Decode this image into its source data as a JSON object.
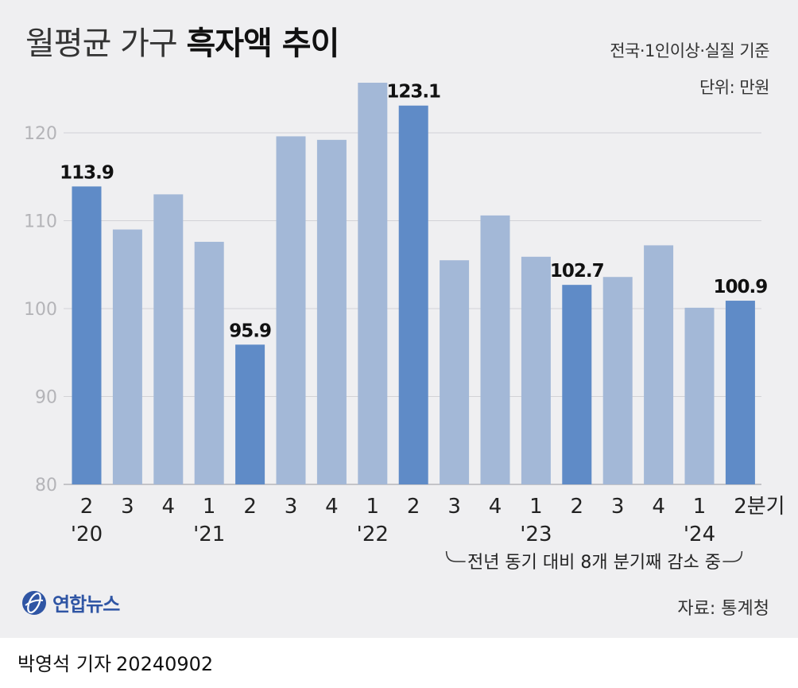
{
  "header": {
    "title_light": "월평균 가구",
    "title_bold": "흑자액 추이",
    "subtitle": "전국·1인이상·실질 기준",
    "unit": "단위: 만원"
  },
  "chart_data": {
    "type": "bar",
    "title": "월평균 가구 흑자액 추이",
    "ylabel": "만원",
    "ylim": [
      80,
      126
    ],
    "yticks": [
      80,
      90,
      100,
      110,
      120
    ],
    "grid": true,
    "categories": [
      "2",
      "3",
      "4",
      "1",
      "2",
      "3",
      "4",
      "1",
      "2",
      "3",
      "4",
      "1",
      "2",
      "3",
      "4",
      "1",
      "2"
    ],
    "last_category_suffix": "분기",
    "years": [
      {
        "label": "'20",
        "index": 0
      },
      {
        "label": "'21",
        "index": 3
      },
      {
        "label": "'22",
        "index": 7
      },
      {
        "label": "'23",
        "index": 11
      },
      {
        "label": "'24",
        "index": 15
      }
    ],
    "values": [
      113.9,
      109.0,
      113.0,
      107.6,
      95.9,
      119.6,
      119.2,
      125.7,
      123.1,
      105.5,
      110.6,
      105.9,
      102.7,
      103.6,
      107.2,
      100.1,
      100.9
    ],
    "highlighted": [
      0,
      4,
      8,
      12,
      16
    ],
    "data_labels": [
      "113.9",
      "95.9",
      "123.1",
      "102.7",
      "100.9"
    ],
    "annotation": {
      "text": "전년 동기 대비 8개 분기째 감소 중",
      "from_index": 9,
      "to_index": 16
    },
    "colors": {
      "highlight": "#5f8bc7",
      "normal": "#a3b8d7",
      "grid": "#d2d2d6"
    }
  },
  "footer": {
    "logo_text": "연합뉴스",
    "source": "자료: 통계청",
    "byline_name": "박영석 기자",
    "byline_date": "20240902"
  }
}
